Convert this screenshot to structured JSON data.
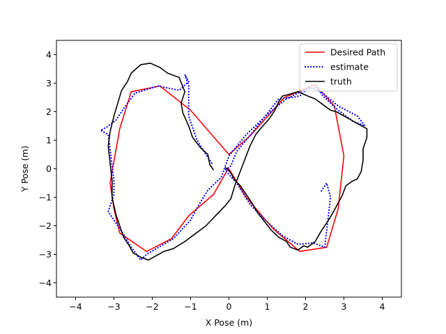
{
  "chart_data": {
    "type": "line",
    "title": "",
    "xlabel": "X Pose (m)",
    "ylabel": "Y Pose (m)",
    "xlim": [
      -4.5,
      4.5
    ],
    "ylim": [
      -4.5,
      4.5
    ],
    "xticks": [
      -4,
      -3,
      -2,
      -1,
      0,
      1,
      2,
      3,
      4
    ],
    "yticks": [
      -4,
      -3,
      -2,
      -1,
      0,
      1,
      2,
      3,
      4
    ],
    "xtick_labels": [
      "−4",
      "−3",
      "−2",
      "−1",
      "0",
      "1",
      "2",
      "3",
      "4"
    ],
    "ytick_labels": [
      "−4",
      "−3",
      "−2",
      "−1",
      "0",
      "1",
      "2",
      "3",
      "4"
    ],
    "grid": false,
    "legend_position": "top-right",
    "series": [
      {
        "name": "Desired Path",
        "color": "#ff0000",
        "style": "solid",
        "x": [
          0,
          -0.4,
          -1.05,
          -1.5,
          -2.15,
          -2.85,
          -3.0,
          -3.1,
          -2.85,
          -2.55,
          -1.8,
          -1.0,
          0.0,
          0.55,
          1.45,
          2.25,
          2.75,
          3.0,
          2.85,
          2.55,
          1.85,
          1.15,
          0.45,
          0.0
        ],
        "y": [
          0.05,
          -0.9,
          -1.65,
          -2.45,
          -2.9,
          -2.25,
          -1.4,
          -0.5,
          1.4,
          2.7,
          2.9,
          2.05,
          0.5,
          1.15,
          2.5,
          2.95,
          2.2,
          0.45,
          -1.4,
          -2.75,
          -2.9,
          -2.1,
          -1.0,
          0.0
        ]
      },
      {
        "name": "estimate",
        "color": "#0000ff",
        "style": "dotted",
        "x": [
          -0.45,
          -0.65,
          -0.85,
          -1.05,
          -1.05,
          -1.15,
          -1.05,
          -1.3,
          -1.85,
          -2.45,
          -2.75,
          -2.95,
          -3.2,
          -3.35,
          -3.15,
          -3.0,
          -3.0,
          -3.15,
          -2.95,
          -2.75,
          -2.55,
          -2.3,
          -2.15,
          -1.45,
          -1.0,
          -0.8,
          -0.55,
          -0.2,
          0.0,
          0.45,
          1.0,
          1.5,
          2.1,
          2.4,
          2.85,
          3.35,
          3.55,
          3.25,
          2.85,
          2.45,
          2.3,
          2.05,
          1.85,
          1.65,
          1.3,
          0.6,
          0.2,
          0.05,
          -0.1,
          0.2,
          0.55,
          0.95,
          1.4,
          1.8,
          2.2,
          2.5,
          2.65,
          2.55,
          2.4
        ],
        "y": [
          0.2,
          0.6,
          1.05,
          1.85,
          2.9,
          3.3,
          3.05,
          2.75,
          2.9,
          2.65,
          2.1,
          1.7,
          1.45,
          1.35,
          1.2,
          -0.4,
          -0.9,
          -1.5,
          -1.9,
          -2.3,
          -2.75,
          -3.2,
          -3.0,
          -2.45,
          -1.8,
          -1.3,
          -0.75,
          -0.3,
          0.45,
          1.2,
          1.9,
          2.45,
          2.85,
          2.7,
          2.2,
          1.85,
          1.5,
          1.65,
          2.05,
          2.55,
          2.85,
          2.8,
          2.55,
          2.5,
          2.45,
          1.25,
          0.6,
          0.1,
          -0.05,
          -0.5,
          -1.25,
          -1.8,
          -2.35,
          -2.65,
          -2.6,
          -2.75,
          -1.0,
          -0.5,
          -0.8
        ]
      },
      {
        "name": "truth",
        "color": "#000000",
        "style": "solid",
        "x": [
          -0.4,
          -0.5,
          -0.55,
          -0.75,
          -0.95,
          -1.05,
          -1.2,
          -1.25,
          -1.15,
          -1.3,
          -1.6,
          -1.8,
          -2.05,
          -2.3,
          -2.55,
          -2.65,
          -2.8,
          -2.9,
          -3.0,
          -3.1,
          -3.15,
          -3.1,
          -3.05,
          -3.05,
          -2.95,
          -2.85,
          -2.75,
          -2.6,
          -2.5,
          -2.3,
          -2.1,
          -1.9,
          -1.7,
          -1.45,
          -1.15,
          -0.9,
          -0.6,
          -0.35,
          -0.1,
          0.05,
          0.15,
          0.25,
          0.35,
          0.45,
          0.55,
          0.7,
          0.85,
          1.05,
          1.2,
          1.3,
          1.4,
          1.55,
          1.8,
          2.05,
          2.25,
          2.45,
          2.65,
          2.8,
          3.0,
          3.2,
          3.4,
          3.6,
          3.6,
          3.5,
          3.5,
          3.45,
          3.35,
          3.2,
          3.05,
          2.95,
          2.85,
          2.75,
          2.6,
          2.4,
          2.25,
          2.05,
          1.95,
          1.8,
          1.6,
          1.5,
          1.3,
          1.1,
          0.9,
          0.75,
          0.6,
          0.45,
          0.3,
          0.15,
          0.05,
          -0.05,
          -0.1
        ],
        "y": [
          -0.05,
          0.15,
          0.5,
          0.75,
          1.1,
          1.5,
          1.95,
          2.3,
          2.7,
          3.2,
          3.35,
          3.55,
          3.7,
          3.65,
          3.35,
          3.05,
          2.75,
          2.3,
          1.85,
          1.3,
          0.8,
          0.2,
          -0.4,
          -1.0,
          -1.6,
          -2.0,
          -2.4,
          -2.7,
          -2.95,
          -3.1,
          -3.2,
          -3.05,
          -2.9,
          -2.8,
          -2.55,
          -2.3,
          -2.0,
          -1.65,
          -1.3,
          -1.05,
          -0.6,
          -0.25,
          0.1,
          0.45,
          0.8,
          1.2,
          1.45,
          1.75,
          2.05,
          2.35,
          2.55,
          2.6,
          2.7,
          2.55,
          2.45,
          2.25,
          2.05,
          2.0,
          1.85,
          1.7,
          1.55,
          1.4,
          1.1,
          0.7,
          0.3,
          -0.1,
          -0.35,
          -0.45,
          -0.6,
          -0.95,
          -1.2,
          -1.45,
          -1.8,
          -2.2,
          -2.55,
          -2.75,
          -2.7,
          -2.85,
          -2.75,
          -2.55,
          -2.4,
          -2.15,
          -1.8,
          -1.55,
          -1.2,
          -0.9,
          -0.6,
          -0.4,
          -0.15,
          0.0,
          0.05
        ]
      }
    ]
  }
}
